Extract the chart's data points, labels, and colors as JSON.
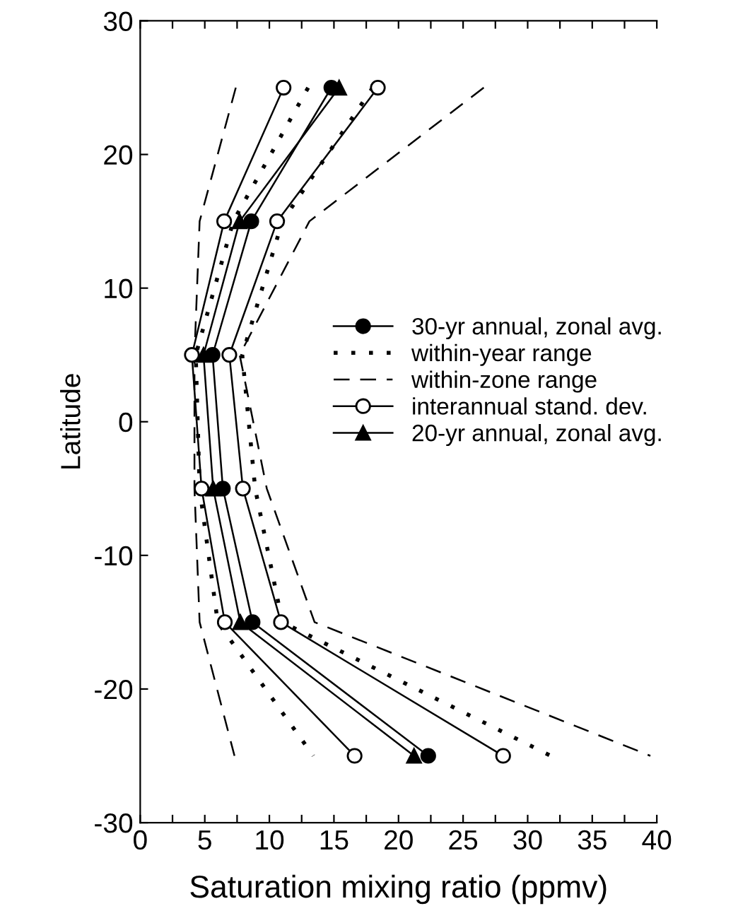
{
  "chart_data": {
    "type": "line",
    "xlabel": "Saturation mixing ratio (ppmv)",
    "ylabel": "Latitude",
    "xlim": [
      0,
      40
    ],
    "xticks": [
      0,
      {
        "value": 2.5,
        "label": null
      },
      5,
      {
        "value": 7.5,
        "label": null
      },
      10,
      {
        "value": 12.5,
        "label": null
      },
      15,
      {
        "value": 17.5,
        "label": null
      },
      20,
      {
        "value": 22.5,
        "label": null
      },
      25,
      {
        "value": 27.5,
        "label": null
      },
      30,
      {
        "value": 32.5,
        "label": null
      },
      35,
      {
        "value": 37.5,
        "label": null
      },
      40
    ],
    "ylim": [
      -30,
      30
    ],
    "yticks": [
      -30,
      -20,
      -10,
      0,
      10,
      20,
      30
    ],
    "grid": false,
    "legend": "right",
    "series": [
      {
        "name": "30-yr annual, zonal avg.",
        "color": "#000000",
        "marker": "circle",
        "line_style": "solid",
        "x": [
          14.8,
          8.6,
          5.6,
          6.4,
          8.7,
          22.3
        ],
        "values": [
          25,
          15,
          5,
          -5,
          -15,
          -25
        ]
      },
      {
        "name": "within-year range",
        "color": "#000000",
        "marker": "none",
        "line_style": "dotted",
        "x": [
          13.0,
          7.2,
          4.3,
          4.6,
          6.0,
          13.4
        ],
        "values": [
          25,
          15,
          5,
          -5,
          -15,
          -25
        ]
      },
      {
        "color": "#000000",
        "marker": "none",
        "line_style": "dotted",
        "x": [
          18.0,
          11.0,
          7.9,
          8.9,
          11.0,
          31.8
        ],
        "values": [
          25,
          15,
          5,
          -5,
          -15,
          -25
        ]
      },
      {
        "name": "within-zone range",
        "color": "#000000",
        "marker": "none",
        "line_style": "dashed",
        "x": [
          7.4,
          4.6,
          4.2,
          4.2,
          4.6,
          7.3
        ],
        "values": [
          25,
          15,
          5,
          -5,
          -15,
          -25
        ]
      },
      {
        "color": "#000000",
        "marker": "none",
        "line_style": "dashed",
        "x": [
          26.6,
          13.1,
          7.7,
          9.8,
          13.5,
          39.5
        ],
        "values": [
          25,
          15,
          5,
          -5,
          -15,
          -25
        ]
      },
      {
        "name": "interannual stand. dev.",
        "color": "#000000",
        "marker": "circle",
        "line_style": "solid",
        "x": [
          11.1,
          6.5,
          4.0,
          4.75,
          6.55,
          16.6
        ],
        "values": [
          25,
          15,
          5,
          -5,
          -15,
          -25
        ]
      },
      {
        "color": "#000000",
        "marker": "circle",
        "line_style": "solid",
        "x": [
          18.4,
          10.6,
          6.9,
          7.95,
          10.9,
          28.1
        ],
        "values": [
          25,
          15,
          5,
          -5,
          -15,
          -25
        ]
      },
      {
        "name": "20-yr annual, zonal avg.",
        "color": "#000000",
        "marker": "triangle",
        "line_style": "solid",
        "x": [
          15.4,
          7.7,
          4.9,
          5.65,
          7.75,
          21.2
        ],
        "values": [
          25,
          15,
          5,
          -5,
          -15,
          -25
        ]
      }
    ]
  }
}
